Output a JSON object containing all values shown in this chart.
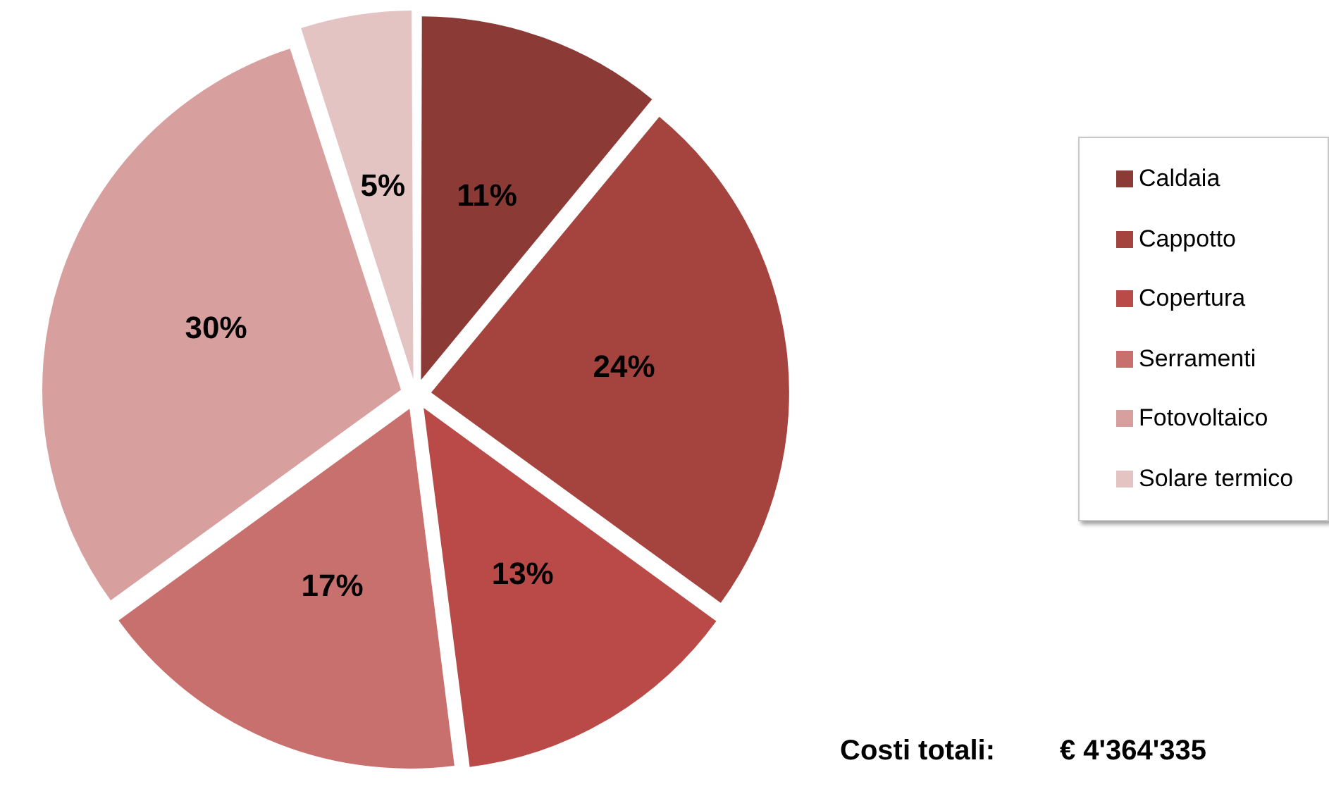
{
  "chart_data": {
    "type": "pie",
    "categories": [
      "Caldaia",
      "Cappotto",
      "Copertura",
      "Serramenti",
      "Fotovoltaico",
      "Solare termico"
    ],
    "values": [
      11,
      24,
      13,
      17,
      30,
      5
    ],
    "colors": [
      "#8b3a36",
      "#a5433f",
      "#b94a47",
      "#c8706d",
      "#d7a09f",
      "#e4c3c3"
    ],
    "value_labels": [
      "11%",
      "24%",
      "13%",
      "17%",
      "30%",
      "5%"
    ],
    "legend": "right",
    "annotations": [
      "Costi totali:",
      "€ 4'364'335"
    ]
  }
}
